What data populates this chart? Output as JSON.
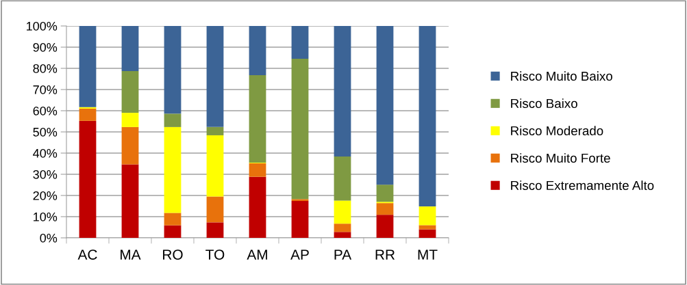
{
  "chart_data": {
    "type": "bar",
    "stacked": true,
    "categories": [
      "AC",
      "MA",
      "RO",
      "TO",
      "AM",
      "AP",
      "PA",
      "RR",
      "MT"
    ],
    "series": [
      {
        "name": "Risco Extremamente Alto",
        "color": "#c00000",
        "values": [
          55.2,
          34.7,
          5.9,
          7.3,
          28.8,
          17.4,
          2.8,
          10.9,
          4.0
        ]
      },
      {
        "name": "Risco Muito Forte",
        "color": "#e8720c",
        "values": [
          5.8,
          17.6,
          5.9,
          12.2,
          6.4,
          0.9,
          3.9,
          5.5,
          2.0
        ]
      },
      {
        "name": "Risco Moderado",
        "color": "#ffff00",
        "values": [
          0.7,
          6.7,
          40.5,
          28.9,
          0.3,
          0,
          10.9,
          0.6,
          8.8
        ]
      },
      {
        "name": "Risco Baixo",
        "color": "#7f9a42",
        "values": [
          0,
          19.7,
          6.3,
          3.9,
          41.3,
          66.2,
          20.8,
          8.1,
          null
        ]
      },
      {
        "name": "Risco Muito Baixo",
        "color": "#3c6496",
        "values": [
          38.3,
          21.3,
          41.4,
          47.7,
          23.2,
          15.5,
          61.6,
          74.9,
          85.2
        ]
      }
    ],
    "ylim": [
      0,
      100
    ],
    "yticks": [
      {
        "value": 0,
        "label": "0%"
      },
      {
        "value": 10,
        "label": "10%"
      },
      {
        "value": 20,
        "label": "20%"
      },
      {
        "value": 30,
        "label": "30%"
      },
      {
        "value": 40,
        "label": "40%"
      },
      {
        "value": 50,
        "label": "50%"
      },
      {
        "value": 60,
        "label": "60%"
      },
      {
        "value": 70,
        "label": "70%"
      },
      {
        "value": 80,
        "label": "80%"
      },
      {
        "value": 90,
        "label": "90%"
      },
      {
        "value": 100,
        "label": "100%"
      }
    ],
    "grid": "y",
    "legend": "right"
  }
}
